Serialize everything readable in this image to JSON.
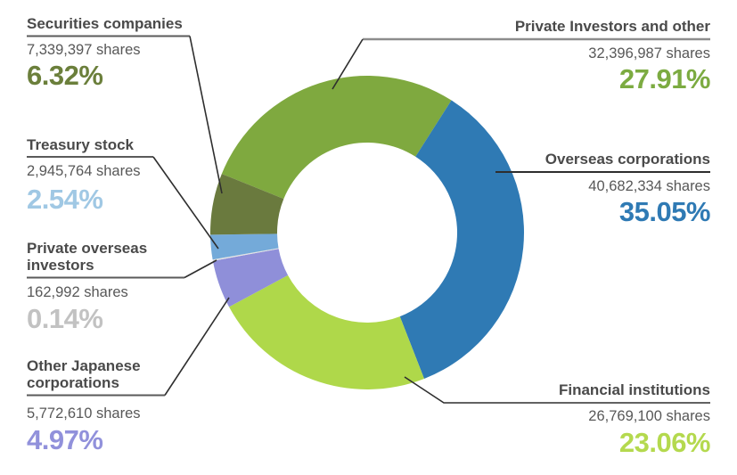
{
  "chart_data": {
    "type": "pie",
    "variant": "donut",
    "title": "",
    "legend_position": "callout-labels",
    "start_angle_deg": -68,
    "unit": "shares",
    "segments": [
      {
        "label": "Private Investors and other",
        "shares": "32,396,987 shares",
        "percent": 27.91,
        "percent_label": "27.91%",
        "color": "#7FA93F",
        "text_color": "#7CAB41"
      },
      {
        "label": "Overseas corporations",
        "shares": "40,682,334 shares",
        "percent": 35.05,
        "percent_label": "35.05%",
        "color": "#2F7AB4",
        "text_color": "#2F7AB4"
      },
      {
        "label": "Financial institutions",
        "shares": "26,769,100 shares",
        "percent": 23.06,
        "percent_label": "23.06%",
        "color": "#AFD84A",
        "text_color": "#B4D94E"
      },
      {
        "label": "Other Japanese corporations",
        "shares": "5,772,610 shares",
        "percent": 4.97,
        "percent_label": "4.97%",
        "color": "#8F8FD9",
        "text_color": "#9191DB"
      },
      {
        "label": "Private overseas investors",
        "shares": "162,992 shares",
        "percent": 0.14,
        "percent_label": "0.14%",
        "color": "#E3E3E3",
        "text_color": "#C2C2C2"
      },
      {
        "label": "Treasury stock",
        "shares": "2,945,764 shares",
        "percent": 2.54,
        "percent_label": "2.54%",
        "color": "#74AAD9",
        "text_color": "#A0C8E4"
      },
      {
        "label": "Securities companies",
        "shares": "7,339,397 shares",
        "percent": 6.32,
        "percent_label": "6.32%",
        "color": "#6A7A3E",
        "text_color": "#6B7F3B"
      }
    ],
    "line_colors": {
      "underline_gray": "#8c8c8c",
      "underline_dark": "#5a5a5a",
      "leader": "#2e2e2e"
    }
  }
}
